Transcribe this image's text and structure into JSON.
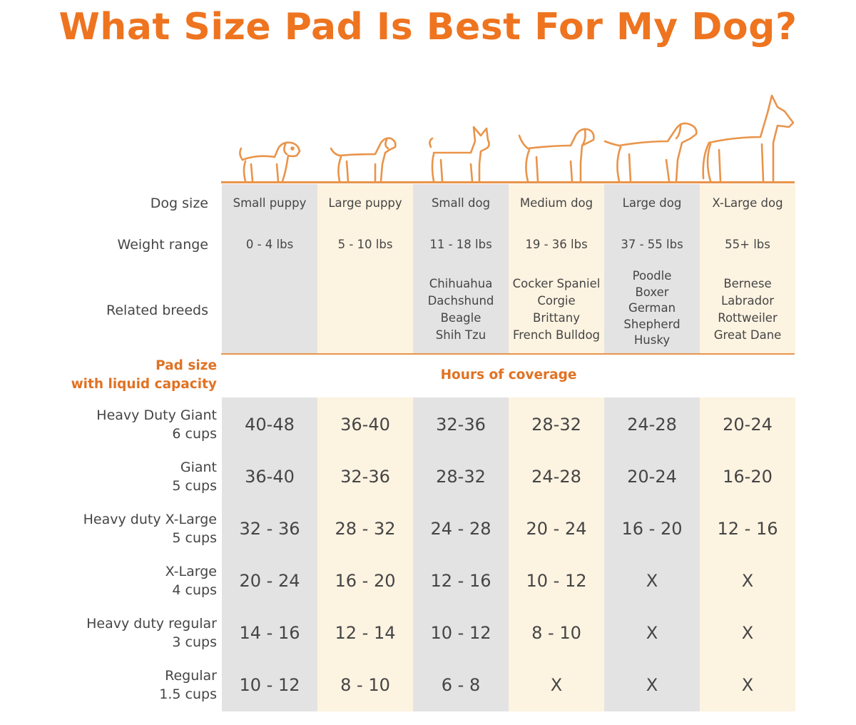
{
  "title": "What Size Pad Is Best For My Dog?",
  "colors": {
    "accent": "#ee7420",
    "grey_column": "#e3e3e3",
    "cream_column": "#fdf3e1",
    "line": "#e9944a"
  },
  "rows": {
    "dog_size": "Dog size",
    "weight_range": "Weight range",
    "related_breeds": "Related breeds",
    "pad_size_line1": "Pad size",
    "pad_size_line2": "with liquid capacity",
    "hours_of_coverage": "Hours of coverage"
  },
  "dogs": [
    {
      "size": "Small puppy",
      "weight": "0 - 4 lbs",
      "breeds": []
    },
    {
      "size": "Large puppy",
      "weight": "5 - 10 lbs",
      "breeds": []
    },
    {
      "size": "Small dog",
      "weight": "11 - 18 lbs",
      "breeds": [
        "Chihuahua",
        "Dachshund",
        "Beagle",
        "Shih Tzu"
      ]
    },
    {
      "size": "Medium dog",
      "weight": "19 - 36 lbs",
      "breeds": [
        "Cocker Spaniel",
        "Corgie",
        "Brittany",
        "French Bulldog"
      ]
    },
    {
      "size": "Large dog",
      "weight": "37 - 55 lbs",
      "breeds": [
        "Poodle",
        "Boxer",
        "German",
        "Shepherd",
        "Husky"
      ]
    },
    {
      "size": "X-Large dog",
      "weight": "55+ lbs",
      "breeds": [
        "Bernese",
        "Labrador",
        "Rottweiler",
        "Great Dane"
      ]
    }
  ],
  "pads": [
    {
      "name": "Heavy Duty Giant",
      "capacity": "6 cups",
      "hours": [
        "40-48",
        "36-40",
        "32-36",
        "28-32",
        "24-28",
        "20-24"
      ]
    },
    {
      "name": "Giant",
      "capacity": "5 cups",
      "hours": [
        "36-40",
        "32-36",
        "28-32",
        "24-28",
        "20-24",
        "16-20"
      ]
    },
    {
      "name": "Heavy duty X-Large",
      "capacity": "5 cups",
      "hours": [
        "32 - 36",
        "28 - 32",
        "24 - 28",
        "20 - 24",
        "16 - 20",
        "12 - 16"
      ]
    },
    {
      "name": "X-Large",
      "capacity": "4 cups",
      "hours": [
        "20 - 24",
        "16 - 20",
        "12 - 16",
        "10 - 12",
        "X",
        "X"
      ]
    },
    {
      "name": "Heavy duty regular",
      "capacity": "3 cups",
      "hours": [
        "14 - 16",
        "12 - 14",
        "10 - 12",
        "8 - 10",
        "X",
        "X"
      ]
    },
    {
      "name": "Regular",
      "capacity": "1.5 cups",
      "hours": [
        "10 - 12",
        "8 - 10",
        "6 - 8",
        "X",
        "X",
        "X"
      ]
    }
  ],
  "icons": [
    "small-puppy-icon",
    "large-puppy-icon",
    "small-dog-icon",
    "medium-dog-icon",
    "large-dog-icon",
    "x-large-dog-icon"
  ]
}
